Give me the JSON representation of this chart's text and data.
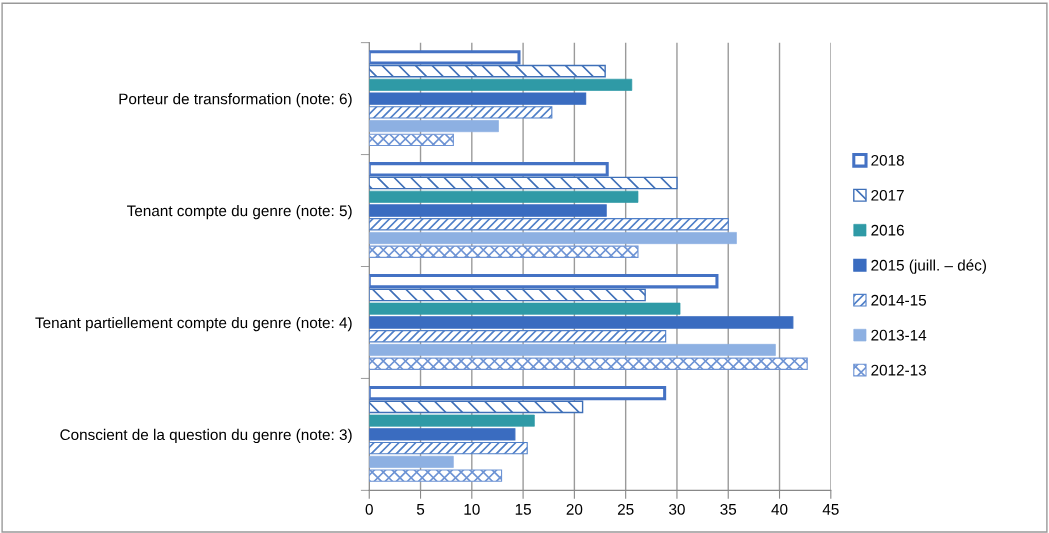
{
  "chart_data": {
    "type": "bar",
    "orientation": "horizontal",
    "categories": [
      "Porteur de transformation (note: 6)",
      "Tenant compte du genre (note: 5)",
      "Tenant partiellement compte du genre (note: 4)",
      "Conscient de la question du genre (note: 3)"
    ],
    "series": [
      {
        "name": "2018",
        "color": "#4472c4",
        "values": [
          14.6,
          23.2,
          33.9,
          28.8
        ]
      },
      {
        "name": "2017",
        "color": "#3e6fb8",
        "values": [
          23.0,
          30.0,
          26.9,
          20.8
        ]
      },
      {
        "name": "2016",
        "color": "#2f9aa6",
        "values": [
          25.6,
          26.2,
          30.3,
          16.1
        ]
      },
      {
        "name": "2015 (juill. – déc)",
        "color": "#3a6cc0",
        "values": [
          21.1,
          23.1,
          41.3,
          14.2
        ]
      },
      {
        "name": "2014-15",
        "color": "#4f7fc8",
        "values": [
          17.8,
          35.0,
          28.9,
          15.4
        ]
      },
      {
        "name": "2013-14",
        "color": "#8db0e2",
        "values": [
          12.6,
          35.8,
          39.6,
          8.2
        ]
      },
      {
        "name": "2012-13",
        "color": "#6d93d4",
        "values": [
          8.2,
          26.2,
          42.7,
          12.9
        ]
      }
    ],
    "xlim": [
      0,
      45
    ],
    "xticks": [
      0,
      5,
      10,
      15,
      20,
      25,
      30,
      35,
      40,
      45
    ],
    "grid": "x",
    "legend": "right"
  }
}
